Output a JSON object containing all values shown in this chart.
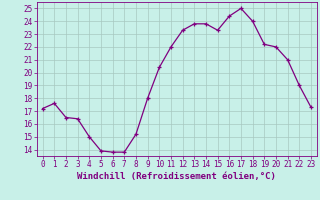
{
  "x": [
    0,
    1,
    2,
    3,
    4,
    5,
    6,
    7,
    8,
    9,
    10,
    11,
    12,
    13,
    14,
    15,
    16,
    17,
    18,
    19,
    20,
    21,
    22,
    23
  ],
  "y": [
    17.2,
    17.6,
    16.5,
    16.4,
    15.0,
    13.9,
    13.8,
    13.8,
    15.2,
    18.0,
    20.4,
    22.0,
    23.3,
    23.8,
    23.8,
    23.3,
    24.4,
    25.0,
    24.0,
    22.2,
    22.0,
    21.0,
    19.0,
    17.3
  ],
  "line_color": "#800080",
  "bg_color": "#c8f0e8",
  "grid_color": "#a8c8c0",
  "xlabel": "Windchill (Refroidissement éolien,°C)",
  "ylabel_ticks": [
    14,
    15,
    16,
    17,
    18,
    19,
    20,
    21,
    22,
    23,
    24,
    25
  ],
  "xtick_labels": [
    "0",
    "1",
    "2",
    "3",
    "4",
    "5",
    "6",
    "7",
    "8",
    "9",
    "10",
    "11",
    "12",
    "13",
    "14",
    "15",
    "16",
    "17",
    "18",
    "19",
    "20",
    "21",
    "22",
    "23"
  ],
  "ylim": [
    13.5,
    25.5
  ],
  "xlim": [
    -0.5,
    23.5
  ],
  "tick_fontsize": 5.5,
  "xlabel_fontsize": 6.5
}
